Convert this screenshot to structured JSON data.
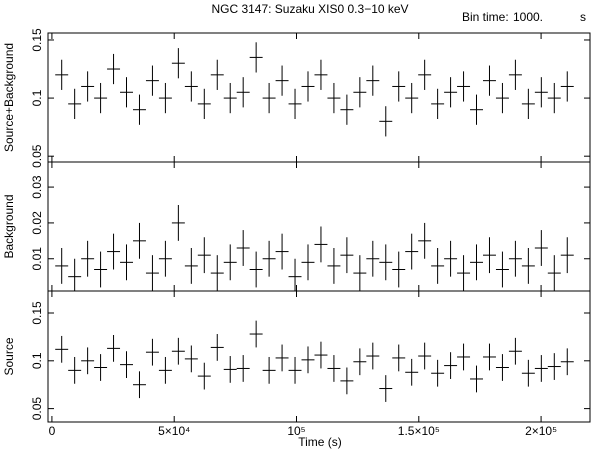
{
  "chart_data": [
    {
      "type": "errorbar",
      "title": "NGC 3147: Suzaku XIS0 0.3−10 keV",
      "bin_label": "Bin time:",
      "bin_value": "1000.",
      "bin_unit": "s",
      "ylabel": "Source+Background",
      "xlim": [
        -1600,
        220000
      ],
      "ylim": [
        0.045,
        0.156
      ],
      "yticks": [
        0.05,
        0.1,
        0.15
      ],
      "error": 0.013,
      "x": [
        4000,
        9300,
        14600,
        19900,
        25200,
        30500,
        35800,
        41100,
        46400,
        51700,
        57000,
        62300,
        67600,
        72900,
        78200,
        83500,
        88800,
        94100,
        99400,
        104700,
        110000,
        115300,
        120600,
        125900,
        131200,
        136500,
        141800,
        147100,
        152400,
        157700,
        163000,
        168300,
        173600,
        178900,
        184200,
        189500,
        194800,
        200100,
        205400,
        210700
      ],
      "values": [
        0.12,
        0.095,
        0.11,
        0.1,
        0.125,
        0.105,
        0.09,
        0.115,
        0.1,
        0.13,
        0.11,
        0.095,
        0.12,
        0.1,
        0.105,
        0.135,
        0.1,
        0.115,
        0.095,
        0.11,
        0.12,
        0.1,
        0.09,
        0.105,
        0.115,
        0.08,
        0.11,
        0.1,
        0.12,
        0.095,
        0.105,
        0.11,
        0.09,
        0.115,
        0.1,
        0.12,
        0.095,
        0.105,
        0.1,
        0.11
      ]
    },
    {
      "type": "errorbar",
      "ylabel": "Background",
      "xlim": [
        -1600,
        220000
      ],
      "ylim": [
        0.001,
        0.037
      ],
      "yticks": [
        0.01,
        0.02,
        0.03
      ],
      "error": 0.005,
      "x": [
        4000,
        9300,
        14600,
        19900,
        25200,
        30500,
        35800,
        41100,
        46400,
        51700,
        57000,
        62300,
        67600,
        72900,
        78200,
        83500,
        88800,
        94100,
        99400,
        104700,
        110000,
        115300,
        120600,
        125900,
        131200,
        136500,
        141800,
        147100,
        152400,
        157700,
        163000,
        168300,
        173600,
        178900,
        184200,
        189500,
        194800,
        200100,
        205400,
        210700
      ],
      "values": [
        0.008,
        0.005,
        0.01,
        0.007,
        0.012,
        0.009,
        0.015,
        0.006,
        0.01,
        0.02,
        0.008,
        0.011,
        0.006,
        0.009,
        0.013,
        0.007,
        0.01,
        0.012,
        0.005,
        0.009,
        0.014,
        0.008,
        0.011,
        0.006,
        0.01,
        0.009,
        0.007,
        0.012,
        0.015,
        0.008,
        0.01,
        0.006,
        0.009,
        0.011,
        0.007,
        0.01,
        0.008,
        0.013,
        0.006,
        0.011
      ]
    },
    {
      "type": "errorbar",
      "ylabel": "Source",
      "xlabel": "Time (s)",
      "xlim": [
        -1600,
        220000
      ],
      "ylim": [
        0.036,
        0.173
      ],
      "yticks": [
        0.05,
        0.1,
        0.15
      ],
      "error": 0.014,
      "xticks": [
        0,
        {
          "value": 50000,
          "label": "5×10⁴"
        },
        {
          "value": 100000,
          "label": "10⁵"
        },
        {
          "value": 150000,
          "label": "1.5×10⁵"
        },
        {
          "value": 200000,
          "label": "2×10⁵"
        }
      ],
      "x": [
        4000,
        9300,
        14600,
        19900,
        25200,
        30500,
        35800,
        41100,
        46400,
        51700,
        57000,
        62300,
        67600,
        72900,
        78200,
        83500,
        88800,
        94100,
        99400,
        104700,
        110000,
        115300,
        120600,
        125900,
        131200,
        136500,
        141800,
        147100,
        152400,
        157700,
        163000,
        168300,
        173600,
        178900,
        184200,
        189500,
        194800,
        200100,
        205400,
        210700
      ],
      "values": [
        0.112,
        0.09,
        0.1,
        0.093,
        0.113,
        0.096,
        0.075,
        0.109,
        0.09,
        0.11,
        0.102,
        0.084,
        0.114,
        0.091,
        0.092,
        0.128,
        0.09,
        0.103,
        0.09,
        0.101,
        0.106,
        0.092,
        0.079,
        0.099,
        0.105,
        0.071,
        0.103,
        0.088,
        0.105,
        0.087,
        0.095,
        0.104,
        0.081,
        0.104,
        0.093,
        0.11,
        0.087,
        0.092,
        0.094,
        0.099
      ]
    }
  ]
}
